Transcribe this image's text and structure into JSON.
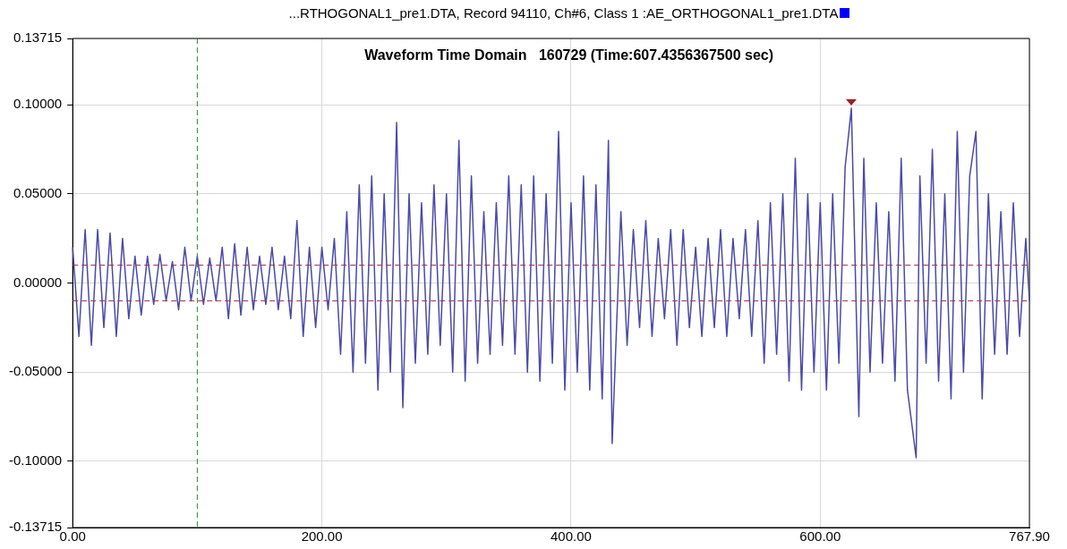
{
  "chart_data": {
    "type": "line",
    "title": "...RTHOGONAL1_pre1.DTA, Record 94110, Ch#6, Class 1 :AE_ORTHOGONAL1_pre1.DTA",
    "subtitle": "Waveform Time Domain   160729 (Time:607.4356367500 sec)",
    "x": [
      0,
      5,
      10,
      15,
      20,
      25,
      30,
      35,
      40,
      45,
      50,
      55,
      60,
      65,
      70,
      75,
      80,
      85,
      90,
      95,
      100,
      105,
      110,
      115,
      120,
      125,
      130,
      135,
      140,
      145,
      150,
      155,
      160,
      165,
      170,
      175,
      180,
      185,
      190,
      195,
      200,
      205,
      210,
      215,
      220,
      225,
      230,
      235,
      240,
      245,
      250,
      255,
      260,
      265,
      270,
      275,
      280,
      285,
      290,
      295,
      300,
      305,
      310,
      315,
      320,
      325,
      330,
      335,
      340,
      345,
      350,
      355,
      360,
      365,
      370,
      375,
      380,
      385,
      390,
      395,
      400,
      405,
      410,
      415,
      420,
      425,
      430,
      433,
      440,
      445,
      450,
      455,
      460,
      465,
      470,
      475,
      480,
      485,
      490,
      495,
      500,
      505,
      510,
      515,
      520,
      525,
      530,
      535,
      540,
      545,
      550,
      555,
      560,
      565,
      570,
      575,
      580,
      585,
      590,
      595,
      600,
      605,
      610,
      615,
      620,
      625,
      631,
      635,
      640,
      645,
      650,
      655,
      660,
      665,
      670,
      677,
      680,
      685,
      690,
      695,
      700,
      705,
      710,
      715,
      720,
      725,
      730,
      735,
      740,
      745,
      750,
      755,
      760,
      765,
      767.9
    ],
    "series": [
      {
        "color": "#4a4aa8",
        "values": [
          0.02,
          -0.03,
          0.03,
          -0.035,
          0.03,
          -0.025,
          0.028,
          -0.03,
          0.025,
          -0.02,
          0.015,
          -0.018,
          0.015,
          -0.012,
          0.016,
          -0.01,
          0.012,
          -0.015,
          0.02,
          -0.01,
          0.015,
          -0.012,
          0.014,
          -0.01,
          0.02,
          -0.02,
          0.022,
          -0.018,
          0.02,
          -0.015,
          0.015,
          -0.012,
          0.02,
          -0.015,
          0.015,
          -0.02,
          0.035,
          -0.03,
          0.02,
          -0.025,
          0.02,
          -0.015,
          0.025,
          -0.04,
          0.04,
          -0.05,
          0.055,
          -0.045,
          0.06,
          -0.06,
          0.05,
          -0.05,
          0.09,
          -0.07,
          0.05,
          -0.045,
          0.045,
          -0.04,
          0.055,
          -0.035,
          0.05,
          -0.05,
          0.08,
          -0.055,
          0.06,
          -0.045,
          0.04,
          -0.04,
          0.045,
          -0.035,
          0.06,
          -0.04,
          0.055,
          -0.05,
          0.06,
          -0.055,
          0.05,
          -0.045,
          0.085,
          -0.06,
          0.045,
          -0.05,
          0.06,
          -0.06,
          0.055,
          -0.065,
          0.08,
          -0.09,
          0.04,
          -0.035,
          0.03,
          -0.025,
          0.035,
          -0.03,
          0.025,
          -0.02,
          0.03,
          -0.035,
          0.03,
          -0.025,
          0.02,
          -0.03,
          0.025,
          -0.025,
          0.03,
          -0.03,
          0.025,
          -0.02,
          0.03,
          -0.03,
          0.035,
          -0.045,
          0.045,
          -0.04,
          0.05,
          -0.055,
          0.07,
          -0.06,
          0.05,
          -0.05,
          0.045,
          -0.06,
          0.05,
          -0.045,
          0.065,
          0.098,
          -0.075,
          0.07,
          -0.05,
          0.045,
          -0.045,
          0.04,
          -0.055,
          0.07,
          -0.06,
          -0.098,
          0.06,
          -0.045,
          0.075,
          -0.055,
          0.05,
          -0.065,
          0.085,
          -0.05,
          0.06,
          0.085,
          -0.065,
          0.05,
          -0.04,
          0.04,
          -0.04,
          0.045,
          -0.03,
          0.025,
          -0.01
        ]
      }
    ],
    "xlim": [
      0,
      767.9
    ],
    "xticks": [
      {
        "value": 0,
        "label": "0.00"
      },
      {
        "value": 200,
        "label": "200.00"
      },
      {
        "value": 400,
        "label": "400.00"
      },
      {
        "value": 600,
        "label": "600.00"
      },
      {
        "value": 767.9,
        "label": "767.90"
      }
    ],
    "ylim": [
      -0.13715,
      0.13715
    ],
    "yticks": [
      {
        "value": -0.13715,
        "label": "-0.13715"
      },
      {
        "value": -0.1,
        "label": "-0.10000"
      },
      {
        "value": -0.05,
        "label": "-0.05000"
      },
      {
        "value": 0,
        "label": "0.00000"
      },
      {
        "value": 0.05,
        "label": "0.05000"
      },
      {
        "value": 0.1,
        "label": "0.10000"
      },
      {
        "value": 0.13715,
        "label": "0.13715"
      }
    ],
    "ref_lines": [
      {
        "axis": "y",
        "value": 0.01,
        "color": "#a03050",
        "line_style": "dashed"
      },
      {
        "axis": "y",
        "value": -0.01,
        "color": "#a03050",
        "line_style": "dashed"
      },
      {
        "axis": "x",
        "value": 100,
        "color": "#2e8b2e",
        "line_style": "dashed"
      }
    ],
    "grid": true,
    "marker": "none",
    "line_style": "solid",
    "legend": false
  }
}
